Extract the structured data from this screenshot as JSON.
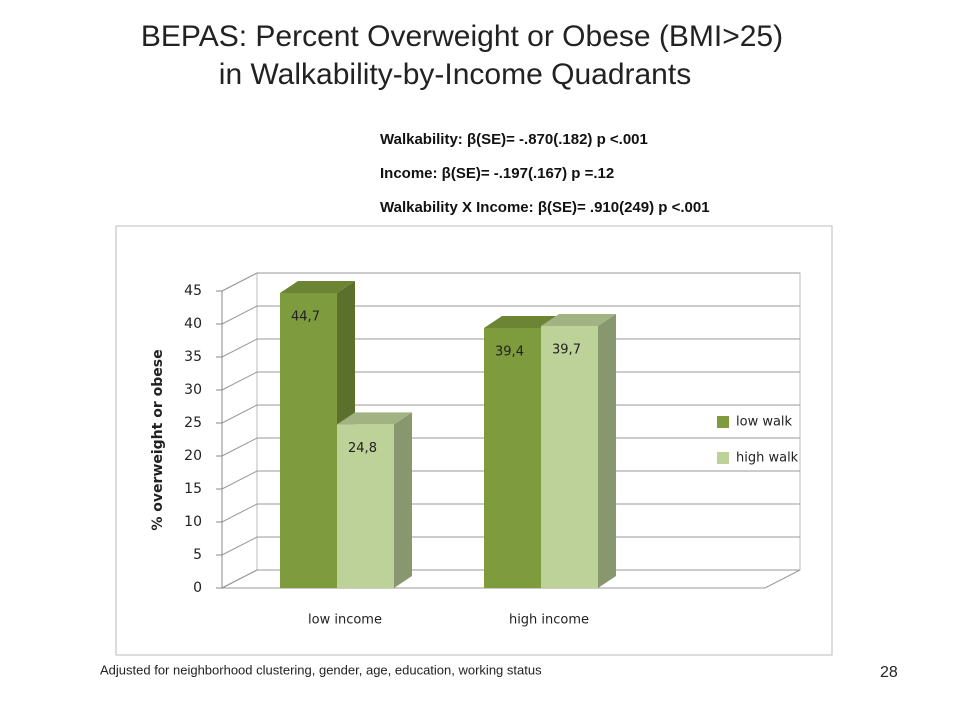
{
  "title": [
    "BEPAS: Percent Overweight or Obese (BMI>25)",
    "in Walkability-by-Income Quadrants"
  ],
  "annotations": [
    "Walkability: β(SE)= -.870(.182) p <.001",
    "Income: β(SE)= -.197(.167) p =.12",
    "Walkability X Income: β(SE)= .910(249) p <.001"
  ],
  "footnote": "Adjusted for neighborhood clustering, gender, age, education, working status",
  "page_number": "28",
  "chart_data": {
    "type": "bar3d",
    "categories": [
      "low income",
      "high income"
    ],
    "series": [
      {
        "name": "low walk",
        "color": "#7e9c3e",
        "values": [
          44.7,
          39.4
        ],
        "value_labels": [
          "44,7",
          "39,4"
        ]
      },
      {
        "name": "high walk",
        "color": "#bdd299",
        "values": [
          24.8,
          39.7
        ],
        "value_labels": [
          "24,8",
          "39,7"
        ]
      }
    ],
    "y_label": "% overweight or obese",
    "ylim": [
      0,
      45
    ],
    "yticks": [
      0,
      5,
      10,
      15,
      20,
      25,
      30,
      35,
      40,
      45
    ],
    "grid": true,
    "legend": "right"
  }
}
